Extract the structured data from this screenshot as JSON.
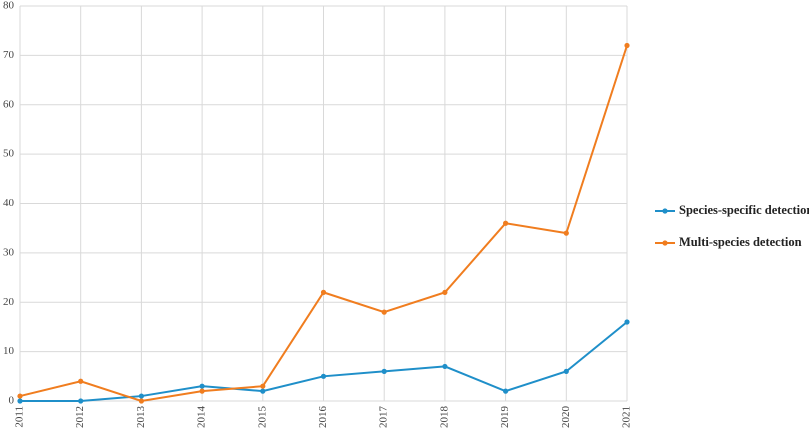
{
  "chart_data": {
    "type": "line",
    "categories": [
      "2011",
      "2012",
      "2013",
      "2014",
      "2015",
      "2016",
      "2017",
      "2018",
      "2019",
      "2020",
      "2021"
    ],
    "series": [
      {
        "name": "Species-specific detection",
        "color": "#1f8fc9",
        "values": [
          0,
          0,
          1,
          3,
          2,
          5,
          6,
          7,
          2,
          6,
          16
        ]
      },
      {
        "name": "Multi-species detection",
        "color": "#f07d1f",
        "values": [
          1,
          4,
          0,
          2,
          3,
          22,
          18,
          22,
          36,
          34,
          72
        ]
      }
    ],
    "ylim": [
      0,
      80
    ],
    "yticks": [
      0,
      10,
      20,
      30,
      40,
      50,
      60,
      70,
      80
    ],
    "grid": true,
    "legend": "right"
  }
}
